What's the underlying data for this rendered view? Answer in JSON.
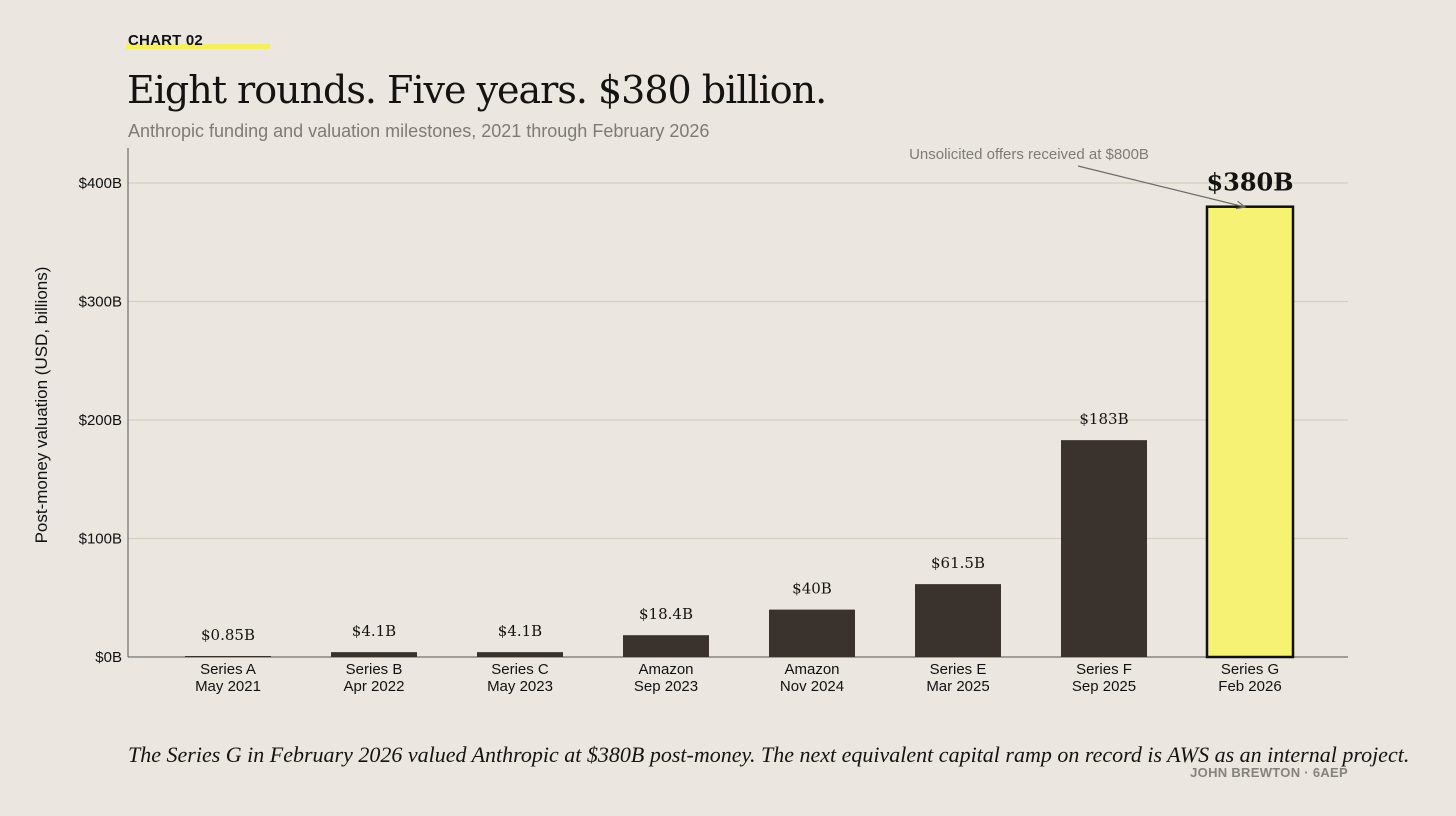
{
  "header": {
    "kicker": "CHART 02",
    "title": "Eight rounds. Five years. $380 billion.",
    "subtitle": "Anthropic funding and valuation milestones, 2021 through February 2026"
  },
  "caption": "The Series G in February 2026 valued Anthropic at $380B post-money. The next equivalent capital ramp on record is AWS as an internal project.",
  "credit": "JOHN BREWTON  ·  6AEP",
  "colors": {
    "bar": "#3a322d",
    "highlight": "#f5f274",
    "grid": "#d4cfbf",
    "background": "#ebe7e0"
  },
  "chart_data": {
    "type": "bar",
    "title": "Eight rounds. Five years. $380 billion.",
    "xlabel": "",
    "ylabel": "Post-money valuation (USD, billions)",
    "ylim": [
      0,
      400
    ],
    "yticks": [
      0,
      100,
      200,
      300,
      400
    ],
    "ytick_labels": [
      "$0B",
      "$100B",
      "$200B",
      "$300B",
      "$400B"
    ],
    "grid": true,
    "categories": [
      [
        "Series A",
        "May 2021"
      ],
      [
        "Series B",
        "Apr 2022"
      ],
      [
        "Series C",
        "May 2023"
      ],
      [
        "Amazon",
        "Sep 2023"
      ],
      [
        "Amazon",
        "Nov 2024"
      ],
      [
        "Series E",
        "Mar 2025"
      ],
      [
        "Series F",
        "Sep 2025"
      ],
      [
        "Series G",
        "Feb 2026"
      ]
    ],
    "values": [
      0.85,
      4.1,
      4.1,
      18.4,
      40,
      61.5,
      183,
      380
    ],
    "data_labels": [
      "$0.85B",
      "$4.1B",
      "$4.1B",
      "$18.4B",
      "$40B",
      "$61.5B",
      "$183B",
      "$380B"
    ],
    "highlight_index": 7,
    "annotation": "Unsolicited offers received at $800B"
  }
}
